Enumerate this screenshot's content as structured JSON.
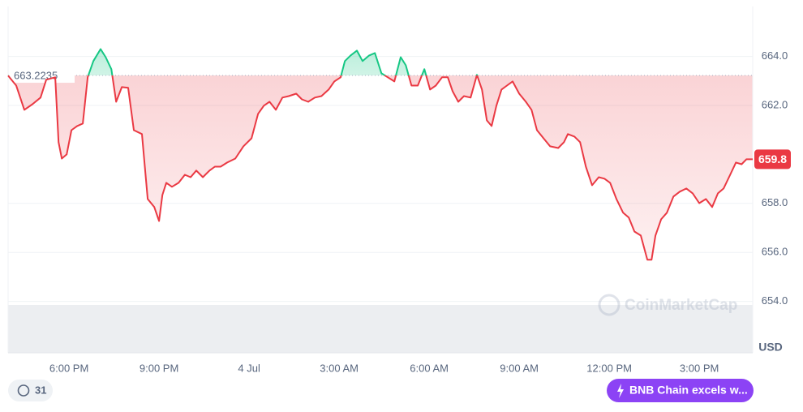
{
  "chart_data": {
    "type": "line",
    "x": [
      15.97,
      16.24,
      16.51,
      16.78,
      17.05,
      17.24,
      17.54,
      17.65,
      17.76,
      17.92,
      18.08,
      18.27,
      18.46,
      18.62,
      18.81,
      19.05,
      19.22,
      19.41,
      19.57,
      19.76,
      19.97,
      20.16,
      20.43,
      20.62,
      20.84,
      21.0,
      21.11,
      21.24,
      21.43,
      21.65,
      21.86,
      22.05,
      22.24,
      22.46,
      22.68,
      22.86,
      23.05,
      23.27,
      23.54,
      23.81,
      24.08,
      24.3,
      24.49,
      24.68,
      24.89,
      25.11,
      25.32,
      25.57,
      25.76,
      25.97,
      26.19,
      26.41,
      26.65,
      26.84,
      27.05,
      27.19,
      27.38,
      27.59,
      27.78,
      28.0,
      28.19,
      28.41,
      28.62,
      28.84,
      29.05,
      29.22,
      29.41,
      29.62,
      29.84,
      30.03,
      30.22,
      30.43,
      30.62,
      30.78,
      30.97,
      31.16,
      31.38,
      31.59,
      31.76,
      31.92,
      32.08,
      32.24,
      32.41,
      32.59,
      32.78,
      33.0,
      33.22,
      33.41,
      33.59,
      33.81,
      34.03,
      34.3,
      34.49,
      34.62,
      34.84,
      35.03,
      35.22,
      35.43,
      35.65,
      35.84,
      36.03,
      36.24,
      36.46,
      36.65,
      36.84,
      37.05,
      37.27,
      37.41,
      37.54,
      37.73,
      37.92,
      38.14,
      38.35,
      38.57,
      38.78,
      39.0,
      39.22,
      39.43,
      39.62,
      39.81,
      40.03,
      40.22,
      40.41,
      40.57,
      40.78
    ],
    "values": [
      663.22,
      662.81,
      661.82,
      662.05,
      662.32,
      663.05,
      663.15,
      660.5,
      659.83,
      660.0,
      660.99,
      661.16,
      661.26,
      663.15,
      663.81,
      664.3,
      663.97,
      663.48,
      662.15,
      662.75,
      662.72,
      660.99,
      660.83,
      658.18,
      657.85,
      657.28,
      658.34,
      658.84,
      658.68,
      658.84,
      659.17,
      659.07,
      659.34,
      659.07,
      659.34,
      659.5,
      659.5,
      659.67,
      659.83,
      660.33,
      660.66,
      661.66,
      661.99,
      662.15,
      661.82,
      662.32,
      662.38,
      662.48,
      662.25,
      662.15,
      662.32,
      662.38,
      662.65,
      662.98,
      663.15,
      663.81,
      664.04,
      664.24,
      663.81,
      664.04,
      664.14,
      663.31,
      663.15,
      662.98,
      663.97,
      663.64,
      662.81,
      662.81,
      663.48,
      662.65,
      662.81,
      663.15,
      663.15,
      662.58,
      662.15,
      662.38,
      662.32,
      663.25,
      662.65,
      661.39,
      661.16,
      661.99,
      662.65,
      662.81,
      662.98,
      662.48,
      662.15,
      661.82,
      660.99,
      660.66,
      660.33,
      660.26,
      660.5,
      660.83,
      660.73,
      660.5,
      659.5,
      658.74,
      659.07,
      659.01,
      658.84,
      658.18,
      657.62,
      657.42,
      656.85,
      656.69,
      655.7,
      655.7,
      656.69,
      657.35,
      657.62,
      658.28,
      658.48,
      658.61,
      658.41,
      658.01,
      658.18,
      657.85,
      658.41,
      658.61,
      659.17,
      659.67,
      659.6,
      659.8,
      659.8
    ],
    "colors": {
      "above": "#16c784",
      "below": "#ea3943"
    },
    "baseline": 663.2235,
    "last_price": 659.8,
    "unit": "USD",
    "xlim": [
      15.97,
      40.78
    ],
    "xticks": [
      {
        "value": 18,
        "label": "6:00 PM"
      },
      {
        "value": 21,
        "label": "9:00 PM"
      },
      {
        "value": 24,
        "label": "4 Jul"
      },
      {
        "value": 27,
        "label": "3:00 AM"
      },
      {
        "value": 30,
        "label": "6:00 AM"
      },
      {
        "value": 33,
        "label": "9:00 AM"
      },
      {
        "value": 36,
        "label": "12:00 PM"
      },
      {
        "value": 39,
        "label": "3:00 PM"
      }
    ],
    "ylim": [
      651.9,
      666.04
    ],
    "yticks": [
      {
        "value": 654,
        "label": "654.0"
      },
      {
        "value": 656,
        "label": "656.0"
      },
      {
        "value": 658,
        "label": "658.0"
      },
      {
        "value": 662,
        "label": "662.0"
      },
      {
        "value": 664,
        "label": "664.0"
      }
    ],
    "grid": true,
    "watermark": "CoinMarketCap",
    "history_count": 31,
    "news_pill": "BNB Chain excels w..."
  }
}
